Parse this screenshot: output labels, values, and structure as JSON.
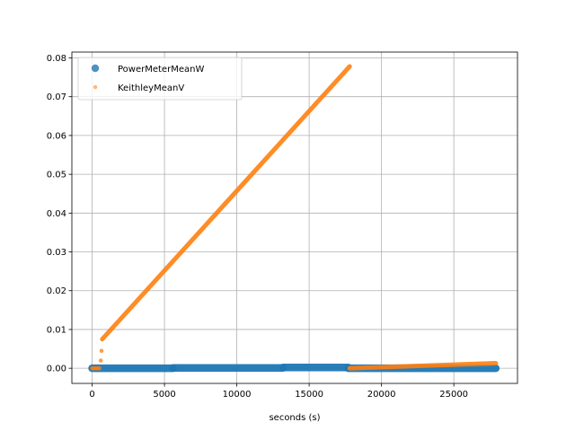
{
  "chart_data": {
    "type": "scatter",
    "title": "",
    "xlabel": "seconds (s)",
    "ylabel": "",
    "xlim": [
      -1400,
      29400
    ],
    "ylim": [
      -0.0039,
      0.0815
    ],
    "xticks": [
      0,
      5000,
      10000,
      15000,
      20000,
      25000
    ],
    "xtick_labels": [
      "0",
      "5000",
      "10000",
      "15000",
      "20000",
      "25000"
    ],
    "yticks": [
      0.0,
      0.01,
      0.02,
      0.03,
      0.04,
      0.05,
      0.06,
      0.07,
      0.08
    ],
    "ytick_labels": [
      "0.00",
      "0.01",
      "0.02",
      "0.03",
      "0.04",
      "0.05",
      "0.06",
      "0.07",
      "0.08"
    ],
    "grid": true,
    "legend_position": "top-left",
    "series": [
      {
        "name": "PowerMeterMeanW",
        "color": "#1f77b4",
        "marker": "circle-large",
        "segments": [
          {
            "x": [
              0,
              5600
            ],
            "y": [
              0.0,
              0.0
            ]
          },
          {
            "x": [
              5600,
              13200
            ],
            "y": [
              0.0001,
              0.0001
            ]
          },
          {
            "x": [
              13200,
              17700
            ],
            "y": [
              0.0002,
              0.0002
            ]
          },
          {
            "x": [
              17700,
              27900
            ],
            "y": [
              0.0,
              0.0
            ]
          }
        ]
      },
      {
        "name": "KeithleyMeanV",
        "color": "#ff7f0e",
        "marker": "circle-small",
        "points": [
          [
            0,
            0.0
          ],
          [
            100,
            0.0
          ],
          [
            200,
            0.0
          ],
          [
            300,
            0.0
          ],
          [
            400,
            0.0
          ],
          [
            500,
            0.0
          ],
          [
            600,
            0.002
          ],
          [
            650,
            0.0045
          ]
        ],
        "segments": [
          {
            "x": [
              700,
              17800
            ],
            "y": [
              0.0075,
              0.0778
            ]
          },
          {
            "x": [
              17800,
              27900
            ],
            "y": [
              0.0,
              0.0013
            ]
          }
        ]
      }
    ]
  }
}
